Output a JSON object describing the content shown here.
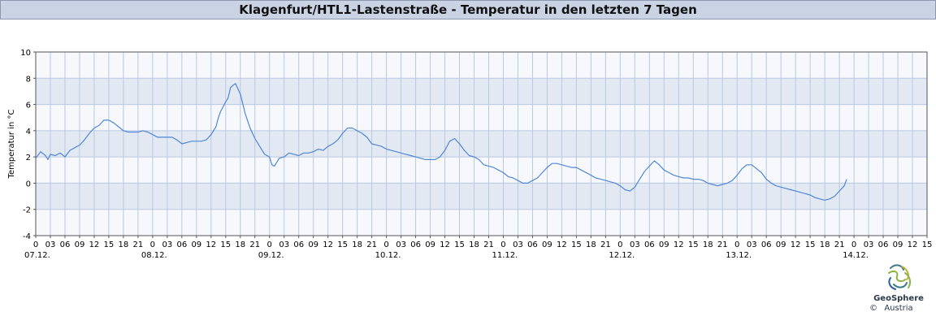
{
  "header": {
    "title": "Klagenfurt/HTL1-Lastenstraße - Temperatur in den letzten 7 Tagen"
  },
  "colors": {
    "line": "#4f86d6",
    "band_dark": "#e3e9f2",
    "band_light": "#f6f8fb",
    "grid": "#b9c8e3",
    "title_bg": "#c9d3e3"
  },
  "logo": {
    "name": "GeoSphere",
    "country": "Austria",
    "copyright": "©",
    "icon": "geosphere-logo-icon"
  },
  "chart_data": {
    "type": "line",
    "title": "Klagenfurt/HTL1-Lastenstraße - Temperatur in den letzten 7 Tagen",
    "ylabel": "Temperatur in °C",
    "xlabel": "",
    "ylim": [
      -4,
      10
    ],
    "yticks": [
      -4,
      -2,
      0,
      2,
      4,
      6,
      8,
      10
    ],
    "xlim_hours": [
      0,
      183
    ],
    "hour_labels": [
      "0",
      "03",
      "06",
      "09",
      "12",
      "15",
      "18",
      "21"
    ],
    "day_labels": [
      "07.12.",
      "08.12.",
      "09.12.",
      "10.12.",
      "11.12.",
      "12.12.",
      "13.12.",
      "14.12."
    ],
    "grid": true,
    "series": [
      {
        "values": [
          [
            0,
            1.9
          ],
          [
            1,
            2.4
          ],
          [
            2,
            2.1
          ],
          [
            2.5,
            1.8
          ],
          [
            3,
            2.2
          ],
          [
            4,
            2.1
          ],
          [
            5,
            2.3
          ],
          [
            6,
            2.0
          ],
          [
            7,
            2.5
          ],
          [
            8,
            2.7
          ],
          [
            9,
            2.9
          ],
          [
            10,
            3.3
          ],
          [
            11,
            3.8
          ],
          [
            12,
            4.2
          ],
          [
            13,
            4.4
          ],
          [
            14,
            4.8
          ],
          [
            15,
            4.8
          ],
          [
            16,
            4.6
          ],
          [
            17,
            4.3
          ],
          [
            18,
            4.0
          ],
          [
            19,
            3.9
          ],
          [
            20,
            3.9
          ],
          [
            21,
            3.9
          ],
          [
            22,
            4.0
          ],
          [
            23,
            3.9
          ],
          [
            24,
            3.7
          ],
          [
            25,
            3.5
          ],
          [
            26,
            3.5
          ],
          [
            27,
            3.5
          ],
          [
            28,
            3.5
          ],
          [
            29,
            3.3
          ],
          [
            30,
            3.0
          ],
          [
            31,
            3.1
          ],
          [
            32,
            3.2
          ],
          [
            33,
            3.2
          ],
          [
            34,
            3.2
          ],
          [
            35,
            3.3
          ],
          [
            36,
            3.7
          ],
          [
            37,
            4.3
          ],
          [
            37.5,
            5.0
          ],
          [
            38,
            5.5
          ],
          [
            39,
            6.2
          ],
          [
            39.5,
            6.5
          ],
          [
            40,
            7.3
          ],
          [
            41,
            7.6
          ],
          [
            42,
            6.8
          ],
          [
            43,
            5.3
          ],
          [
            44,
            4.2
          ],
          [
            45,
            3.4
          ],
          [
            46,
            2.8
          ],
          [
            47,
            2.2
          ],
          [
            48,
            2.0
          ],
          [
            48.5,
            1.4
          ],
          [
            49,
            1.3
          ],
          [
            50,
            1.9
          ],
          [
            51,
            2.0
          ],
          [
            52,
            2.3
          ],
          [
            53,
            2.2
          ],
          [
            54,
            2.1
          ],
          [
            55,
            2.3
          ],
          [
            56,
            2.3
          ],
          [
            57,
            2.4
          ],
          [
            58,
            2.6
          ],
          [
            59,
            2.5
          ],
          [
            60,
            2.8
          ],
          [
            61,
            3.0
          ],
          [
            62,
            3.3
          ],
          [
            63,
            3.8
          ],
          [
            64,
            4.2
          ],
          [
            65,
            4.2
          ],
          [
            66,
            4.0
          ],
          [
            67,
            3.8
          ],
          [
            68,
            3.5
          ],
          [
            69,
            3.0
          ],
          [
            70,
            2.9
          ],
          [
            71,
            2.8
          ],
          [
            72,
            2.6
          ],
          [
            73,
            2.5
          ],
          [
            74,
            2.4
          ],
          [
            75,
            2.3
          ],
          [
            76,
            2.2
          ],
          [
            77,
            2.1
          ],
          [
            78,
            2.0
          ],
          [
            79,
            1.9
          ],
          [
            80,
            1.8
          ],
          [
            81,
            1.8
          ],
          [
            82,
            1.8
          ],
          [
            83,
            2.0
          ],
          [
            84,
            2.5
          ],
          [
            85,
            3.2
          ],
          [
            86,
            3.4
          ],
          [
            87,
            3.0
          ],
          [
            88,
            2.5
          ],
          [
            89,
            2.1
          ],
          [
            90,
            2.0
          ],
          [
            91,
            1.8
          ],
          [
            92,
            1.4
          ],
          [
            93,
            1.3
          ],
          [
            94,
            1.2
          ],
          [
            95,
            1.0
          ],
          [
            96,
            0.8
          ],
          [
            97,
            0.5
          ],
          [
            98,
            0.4
          ],
          [
            99,
            0.2
          ],
          [
            100,
            0.0
          ],
          [
            101,
            0.0
          ],
          [
            102,
            0.2
          ],
          [
            103,
            0.4
          ],
          [
            104,
            0.8
          ],
          [
            105,
            1.2
          ],
          [
            106,
            1.5
          ],
          [
            107,
            1.5
          ],
          [
            108,
            1.4
          ],
          [
            109,
            1.3
          ],
          [
            110,
            1.2
          ],
          [
            111,
            1.2
          ],
          [
            112,
            1.0
          ],
          [
            113,
            0.8
          ],
          [
            114,
            0.6
          ],
          [
            115,
            0.4
          ],
          [
            116,
            0.3
          ],
          [
            117,
            0.2
          ],
          [
            118,
            0.1
          ],
          [
            119,
            0.0
          ],
          [
            120,
            -0.2
          ],
          [
            121,
            -0.5
          ],
          [
            122,
            -0.6
          ],
          [
            123,
            -0.3
          ],
          [
            124,
            0.3
          ],
          [
            125,
            0.9
          ],
          [
            126,
            1.3
          ],
          [
            127,
            1.7
          ],
          [
            128,
            1.4
          ],
          [
            129,
            1.0
          ],
          [
            130,
            0.8
          ],
          [
            131,
            0.6
          ],
          [
            132,
            0.5
          ],
          [
            133,
            0.4
          ],
          [
            134,
            0.4
          ],
          [
            135,
            0.3
          ],
          [
            136,
            0.3
          ],
          [
            137,
            0.2
          ],
          [
            138,
            0.0
          ],
          [
            139,
            -0.1
          ],
          [
            140,
            -0.2
          ],
          [
            141,
            -0.1
          ],
          [
            142,
            0.0
          ],
          [
            143,
            0.2
          ],
          [
            144,
            0.6
          ],
          [
            145,
            1.1
          ],
          [
            146,
            1.4
          ],
          [
            147,
            1.4
          ],
          [
            148,
            1.1
          ],
          [
            149,
            0.8
          ],
          [
            150,
            0.3
          ],
          [
            151,
            0.0
          ],
          [
            152,
            -0.2
          ],
          [
            153,
            -0.3
          ],
          [
            154,
            -0.4
          ],
          [
            155,
            -0.5
          ],
          [
            156,
            -0.6
          ],
          [
            157,
            -0.7
          ],
          [
            158,
            -0.8
          ],
          [
            159,
            -0.9
          ],
          [
            160,
            -1.1
          ],
          [
            161,
            -1.2
          ],
          [
            162,
            -1.3
          ],
          [
            163,
            -1.2
          ],
          [
            164,
            -1.0
          ],
          [
            165,
            -0.6
          ],
          [
            166,
            -0.2
          ],
          [
            166.5,
            0.3
          ]
        ]
      }
    ]
  }
}
